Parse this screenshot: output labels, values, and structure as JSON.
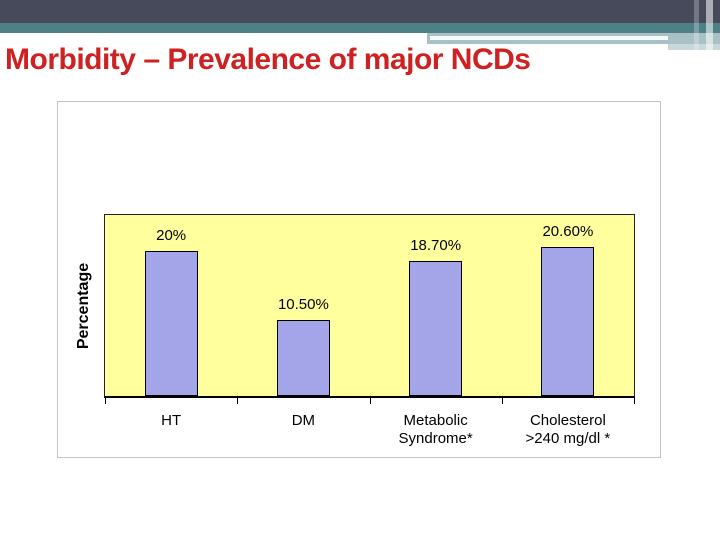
{
  "slide": {
    "title": "Morbidity – Prevalence of major NCDs",
    "title_color": "#CE2121"
  },
  "theme": {
    "band_dark": "#474A5B",
    "band_teal": "#4D8186",
    "band_light": "#A9C1C4",
    "band_light_ext": "#C6D8DA",
    "band_white_line": "#F4F9F9"
  },
  "chart_data": {
    "type": "bar",
    "title": "",
    "categories": [
      "HT",
      "DM",
      "Metabolic Syndrome*",
      "Cholesterol >240 mg/dl *"
    ],
    "categories_display": [
      [
        "HT"
      ],
      [
        "DM"
      ],
      [
        "Metabolic",
        "Syndrome*"
      ],
      [
        "Cholesterol",
        ">240 mg/dl *"
      ]
    ],
    "values": [
      20,
      10.5,
      18.7,
      20.6
    ],
    "value_labels": [
      "20%",
      "10.50%",
      "18.70%",
      "20.60%"
    ],
    "xlabel": "",
    "ylabel": "Percentage",
    "ylim": [
      0,
      25
    ],
    "grid": false,
    "legend": false,
    "y_tick_labels_visible": false,
    "plot_bg": "#FFFF9E",
    "bar_fill": "#A4A4E8",
    "bar_border": "#000000",
    "chart_bg": "#FFFFFF",
    "chart_border": "#C4C4C4",
    "label_color": "#000000"
  }
}
